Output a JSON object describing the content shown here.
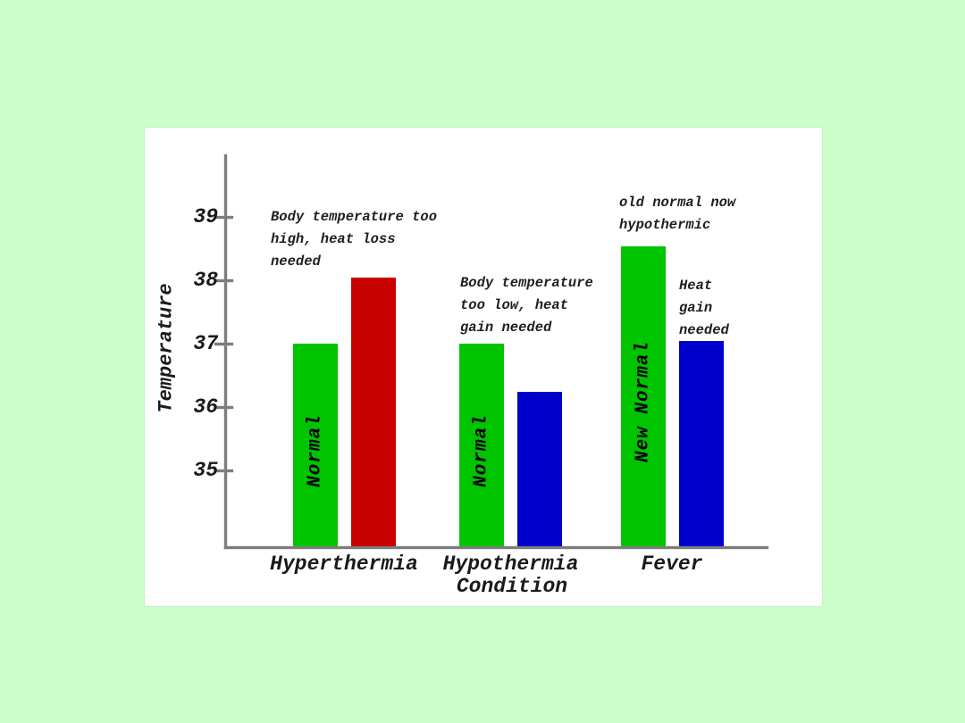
{
  "page": {
    "background_color": "#ccfecc",
    "panel_color": "#ffffff"
  },
  "chart_data": {
    "type": "bar",
    "title": "",
    "xlabel": "Condition",
    "ylabel": "Temperature",
    "ylim": [
      33.8,
      40.0
    ],
    "yticks": [
      35,
      36,
      37,
      38,
      39
    ],
    "grid": false,
    "legend": "none",
    "axis_color": "#7d7d7d",
    "text_color": "#1a1a1a",
    "categories": [
      "Hyperthermia",
      "Hypothermia",
      "Fever"
    ],
    "groups": [
      {
        "category": "Hyperthermia",
        "bars": [
          {
            "label": "Normal",
            "value": 37.0,
            "color": "#00c400"
          },
          {
            "label": "",
            "value": 38.05,
            "color": "#c80000"
          }
        ],
        "annotations": [
          {
            "lines": [
              "Body temperature too",
              "high, heat loss",
              "needed"
            ],
            "x": 141,
            "y": 88
          }
        ]
      },
      {
        "category": "Hypothermia",
        "bars": [
          {
            "label": "Normal",
            "value": 37.0,
            "color": "#00c400"
          },
          {
            "label": "",
            "value": 36.25,
            "color": "#0000cc"
          }
        ],
        "annotations": [
          {
            "lines": [
              "Body temperature",
              "too low, heat",
              "gain needed"
            ],
            "x": 353,
            "y": 162
          }
        ]
      },
      {
        "category": "Fever",
        "bars": [
          {
            "label": "New Normal",
            "value": 38.55,
            "color": "#00c400"
          },
          {
            "label": "",
            "value": 37.05,
            "color": "#0000cc"
          }
        ],
        "annotations": [
          {
            "lines": [
              "old normal now",
              "hypothermic"
            ],
            "x": 531,
            "y": 72
          },
          {
            "lines": [
              "Heat",
              "gain",
              "needed"
            ],
            "x": 598,
            "y": 165
          }
        ]
      }
    ]
  }
}
